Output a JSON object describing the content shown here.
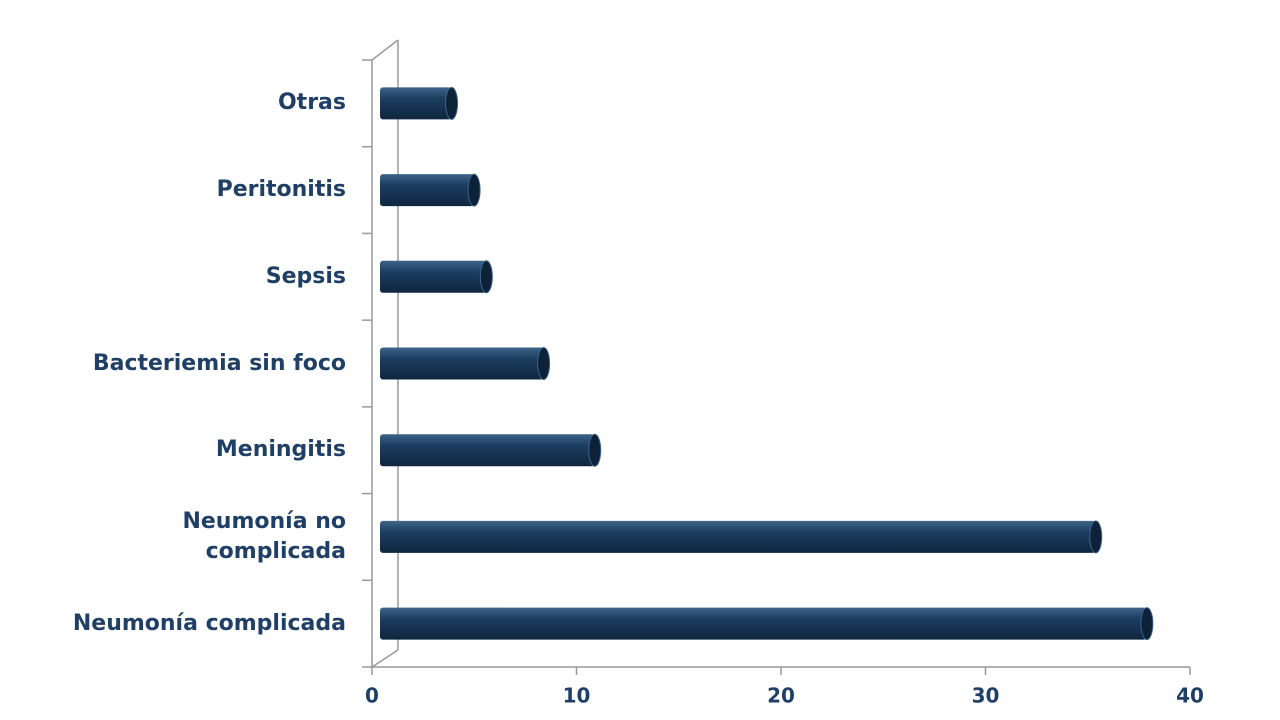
{
  "chart_data": {
    "type": "bar",
    "orientation": "horizontal",
    "categories": [
      "Neumonía complicada",
      "Neumonía no\ncomplicada",
      "Meningitis",
      "Bacteriemia sin foco",
      "Sepsis",
      "Peritonitis",
      "Otras"
    ],
    "values": [
      37.5,
      35,
      10.5,
      8,
      5.2,
      4.6,
      3.5
    ],
    "color": "#1c3d60",
    "xlim": [
      0,
      40
    ],
    "xticks": [
      0,
      10,
      20,
      30,
      40
    ]
  }
}
